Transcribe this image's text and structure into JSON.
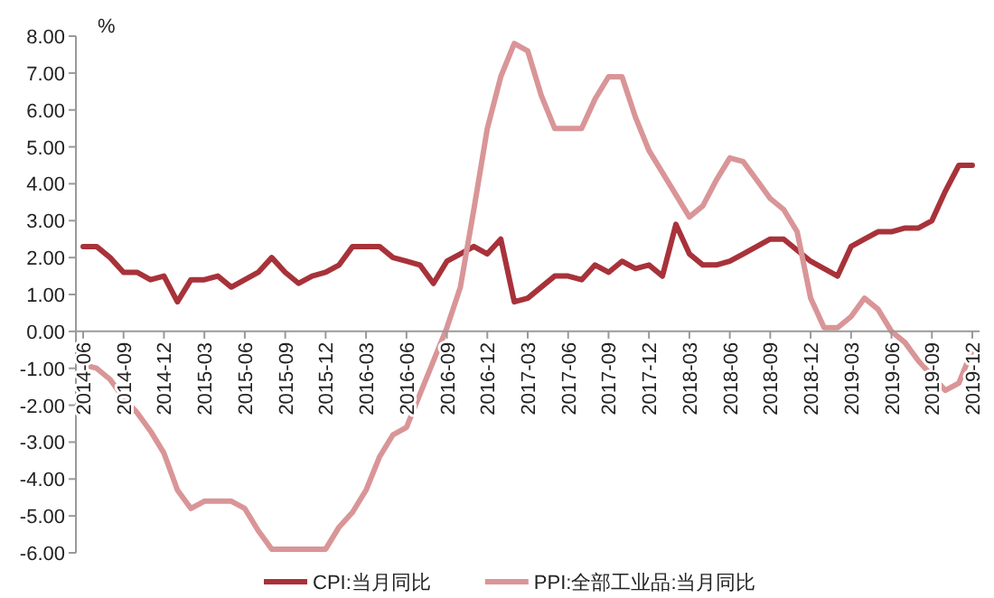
{
  "chart_data": {
    "type": "line",
    "ylabel": "%",
    "categories": [
      "2014-06",
      null,
      null,
      "2014-09",
      null,
      null,
      "2014-12",
      null,
      null,
      "2015-03",
      null,
      null,
      "2015-06",
      null,
      null,
      "2015-09",
      null,
      null,
      "2015-12",
      null,
      null,
      "2016-03",
      null,
      null,
      "2016-06",
      null,
      null,
      "2016-09",
      null,
      null,
      "2016-12",
      null,
      null,
      "2017-03",
      null,
      null,
      "2017-06",
      null,
      null,
      "2017-09",
      null,
      null,
      "2017-12",
      null,
      null,
      "2018-03",
      null,
      null,
      "2018-06",
      null,
      null,
      "2018-09",
      null,
      null,
      "2018-12",
      null,
      null,
      "2019-03",
      null,
      null,
      "2019-06",
      null,
      null,
      "2019-09",
      null,
      null,
      "2019-12"
    ],
    "series": [
      {
        "name": "CPI:当月同比",
        "color": "#a8323a",
        "values": [
          2.3,
          2.3,
          2.0,
          1.6,
          1.6,
          1.4,
          1.5,
          0.8,
          1.4,
          1.4,
          1.5,
          1.2,
          1.4,
          1.6,
          2.0,
          1.6,
          1.3,
          1.5,
          1.6,
          1.8,
          2.3,
          2.3,
          2.3,
          2.0,
          1.9,
          1.8,
          1.3,
          1.9,
          2.1,
          2.3,
          2.1,
          2.5,
          0.8,
          0.9,
          1.2,
          1.5,
          1.5,
          1.4,
          1.8,
          1.6,
          1.9,
          1.7,
          1.8,
          1.5,
          2.9,
          2.1,
          1.8,
          1.8,
          1.9,
          2.1,
          2.3,
          2.5,
          2.5,
          2.2,
          1.9,
          1.7,
          1.5,
          2.3,
          2.5,
          2.7,
          2.7,
          2.8,
          2.8,
          3.0,
          3.8,
          4.5,
          4.5
        ]
      },
      {
        "name": "PPI:全部工业品:当月同比",
        "color": "#d99597",
        "values": [
          -0.9,
          -1.0,
          -1.3,
          -1.8,
          -2.2,
          -2.7,
          -3.3,
          -4.3,
          -4.8,
          -4.6,
          -4.6,
          -4.6,
          -4.8,
          -5.4,
          -5.9,
          -5.9,
          -5.9,
          -5.9,
          -5.9,
          -5.3,
          -4.9,
          -4.3,
          -3.4,
          -2.8,
          -2.6,
          -1.7,
          -0.8,
          0.1,
          1.2,
          3.3,
          5.5,
          6.9,
          7.8,
          7.6,
          6.4,
          5.5,
          5.5,
          5.5,
          6.3,
          6.9,
          6.9,
          5.8,
          4.9,
          4.3,
          3.7,
          3.1,
          3.4,
          4.1,
          4.7,
          4.6,
          4.1,
          3.6,
          3.3,
          2.7,
          0.9,
          0.1,
          0.1,
          0.4,
          0.9,
          0.6,
          0.0,
          -0.3,
          -0.8,
          -1.2,
          -1.6,
          -1.4,
          -0.5
        ]
      }
    ],
    "ylim": [
      -6,
      8
    ],
    "yticks": [
      {
        "value": 8,
        "label": "8.00"
      },
      {
        "value": 7,
        "label": "7.00"
      },
      {
        "value": 6,
        "label": "6.00"
      },
      {
        "value": 5,
        "label": "5.00"
      },
      {
        "value": 4,
        "label": "4.00"
      },
      {
        "value": 3,
        "label": "3.00"
      },
      {
        "value": 2,
        "label": "2.00"
      },
      {
        "value": 1,
        "label": "1.00"
      },
      {
        "value": 0,
        "label": "0.00"
      },
      {
        "value": -1,
        "label": "-1.00"
      },
      {
        "value": -2,
        "label": "-2.00"
      },
      {
        "value": -3,
        "label": "-3.00"
      },
      {
        "value": -4,
        "label": "-4.00"
      },
      {
        "value": -5,
        "label": "-5.00"
      },
      {
        "value": -6,
        "label": "-6.00"
      }
    ],
    "legend": "bottom"
  }
}
